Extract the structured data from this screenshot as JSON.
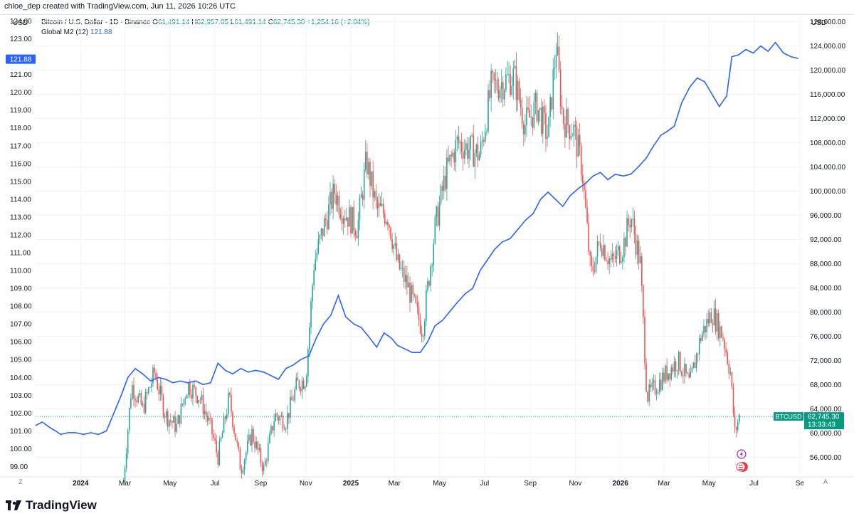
{
  "header": {
    "created_by": "chloe_dep created with TradingView.com, Jun 11, 2026 10:26 UTC"
  },
  "axes_units": {
    "left": "USD",
    "right": "USD"
  },
  "legend": {
    "symbol": "Bitcoin / U.S. Dollar · 1D · Binance",
    "open_label": "O",
    "open": "61,491.14",
    "high_label": "H",
    "high": "62,957.05",
    "low_label": "L",
    "low": "61,491.14",
    "close_label": "C",
    "close": "62,745.30",
    "change": "+1,254.16 (+2.04%)",
    "m2_name": "Global M2 (12)",
    "m2_value": "121.88"
  },
  "colors": {
    "up": "#26a69a",
    "down": "#ef5350",
    "m2_line": "#2962ff",
    "price_tag": "#089981",
    "m2_tag": "#2962ff"
  },
  "chart_data": {
    "type": "line",
    "left_axis": {
      "ticks": [
        "124.00",
        "123.00",
        "121.00",
        "120.00",
        "119.00",
        "118.00",
        "117.00",
        "116.00",
        "115.00",
        "114.00",
        "113.00",
        "112.00",
        "111.00",
        "110.00",
        "109.00",
        "108.00",
        "107.00",
        "106.00",
        "105.00",
        "104.00",
        "103.00",
        "102.00",
        "101.00",
        "100.00",
        "99.00"
      ],
      "range": [
        98.5,
        124.3
      ]
    },
    "right_axis": {
      "ticks": [
        "128,000.00",
        "124,000.00",
        "120,000.00",
        "116,000.00",
        "112,000.00",
        "108,000.00",
        "104,000.00",
        "100,000.00",
        "96,000.00",
        "92,000.00",
        "88,000.00",
        "84,000.00",
        "80,000.00",
        "76,000.00",
        "72,000.00",
        "68,000.00",
        "64,000.00",
        "60,000.00",
        "56,000.00"
      ],
      "range": [
        53000,
        129000
      ]
    },
    "x_ticks": [
      "2024",
      "Mar",
      "May",
      "Jul",
      "Sep",
      "Nov",
      "2025",
      "Mar",
      "May",
      "Jul",
      "Sep",
      "Nov",
      "2026",
      "Mar",
      "May",
      "Jul",
      "Se"
    ],
    "x_range": [
      "2023-11-01",
      "2026-09-05"
    ],
    "series": [
      {
        "name": "Global M2 (12)",
        "axis": "left",
        "points": [
          [
            "2023-11-01",
            101.3
          ],
          [
            "2023-11-10",
            101.5
          ],
          [
            "2023-11-20",
            101.2
          ],
          [
            "2023-11-28",
            101.0
          ],
          [
            "2023-12-05",
            100.8
          ],
          [
            "2023-12-15",
            100.9
          ],
          [
            "2023-12-25",
            100.9
          ],
          [
            "2024-01-05",
            100.8
          ],
          [
            "2024-01-15",
            100.9
          ],
          [
            "2024-01-25",
            100.8
          ],
          [
            "2024-02-05",
            101.0
          ],
          [
            "2024-02-15",
            102.0
          ],
          [
            "2024-02-25",
            103.0
          ],
          [
            "2024-03-05",
            104.0
          ],
          [
            "2024-03-15",
            104.5
          ],
          [
            "2024-03-25",
            104.2
          ],
          [
            "2024-04-05",
            103.8
          ],
          [
            "2024-04-15",
            104.0
          ],
          [
            "2024-04-25",
            103.9
          ],
          [
            "2024-05-05",
            103.7
          ],
          [
            "2024-05-15",
            103.8
          ],
          [
            "2024-05-25",
            103.7
          ],
          [
            "2024-06-05",
            103.8
          ],
          [
            "2024-06-15",
            103.6
          ],
          [
            "2024-06-25",
            103.7
          ],
          [
            "2024-07-05",
            104.8
          ],
          [
            "2024-07-15",
            104.4
          ],
          [
            "2024-07-25",
            104.2
          ],
          [
            "2024-08-05",
            104.5
          ],
          [
            "2024-08-15",
            104.3
          ],
          [
            "2024-08-25",
            104.4
          ],
          [
            "2024-09-05",
            104.3
          ],
          [
            "2024-09-15",
            104.1
          ],
          [
            "2024-09-25",
            103.9
          ],
          [
            "2024-10-05",
            104.5
          ],
          [
            "2024-10-15",
            104.7
          ],
          [
            "2024-10-25",
            105.0
          ],
          [
            "2024-11-05",
            105.2
          ],
          [
            "2024-11-15",
            106.2
          ],
          [
            "2024-11-25",
            107.0
          ],
          [
            "2024-12-05",
            107.5
          ],
          [
            "2024-12-15",
            108.6
          ],
          [
            "2024-12-25",
            107.4
          ],
          [
            "2025-01-05",
            107.0
          ],
          [
            "2025-01-15",
            106.8
          ],
          [
            "2025-01-25",
            106.3
          ],
          [
            "2025-02-05",
            105.7
          ],
          [
            "2025-02-15",
            106.5
          ],
          [
            "2025-02-25",
            106.2
          ],
          [
            "2025-03-05",
            105.8
          ],
          [
            "2025-03-15",
            105.6
          ],
          [
            "2025-03-25",
            105.4
          ],
          [
            "2025-04-05",
            105.4
          ],
          [
            "2025-04-15",
            106.0
          ],
          [
            "2025-04-25",
            106.9
          ],
          [
            "2025-05-05",
            107.2
          ],
          [
            "2025-05-15",
            107.7
          ],
          [
            "2025-05-25",
            108.2
          ],
          [
            "2025-06-05",
            108.7
          ],
          [
            "2025-06-15",
            109.0
          ],
          [
            "2025-06-25",
            110.0
          ],
          [
            "2025-07-05",
            110.6
          ],
          [
            "2025-07-15",
            111.2
          ],
          [
            "2025-07-25",
            111.6
          ],
          [
            "2025-08-05",
            111.8
          ],
          [
            "2025-08-15",
            112.3
          ],
          [
            "2025-08-25",
            112.8
          ],
          [
            "2025-09-05",
            113.2
          ],
          [
            "2025-09-15",
            114.0
          ],
          [
            "2025-09-25",
            114.4
          ],
          [
            "2025-10-05",
            114.0
          ],
          [
            "2025-10-15",
            113.6
          ],
          [
            "2025-10-25",
            114.2
          ],
          [
            "2025-11-05",
            114.6
          ],
          [
            "2025-11-15",
            114.9
          ],
          [
            "2025-11-25",
            115.3
          ],
          [
            "2025-12-05",
            115.5
          ],
          [
            "2025-12-15",
            115.1
          ],
          [
            "2025-12-25",
            115.4
          ],
          [
            "2026-01-05",
            115.3
          ],
          [
            "2026-01-15",
            115.4
          ],
          [
            "2026-01-25",
            115.8
          ],
          [
            "2026-02-05",
            116.3
          ],
          [
            "2026-02-15",
            117.0
          ],
          [
            "2026-02-25",
            117.6
          ],
          [
            "2026-03-05",
            117.8
          ],
          [
            "2026-03-15",
            118.1
          ],
          [
            "2026-03-25",
            119.4
          ],
          [
            "2026-04-05",
            120.3
          ],
          [
            "2026-04-15",
            120.8
          ],
          [
            "2026-04-25",
            120.6
          ],
          [
            "2026-05-05",
            119.9
          ],
          [
            "2026-05-15",
            119.2
          ],
          [
            "2026-05-25",
            119.8
          ],
          [
            "2026-06-01",
            122.0
          ],
          [
            "2026-06-10",
            122.1
          ],
          [
            "2026-06-20",
            122.4
          ],
          [
            "2026-06-30",
            122.2
          ],
          [
            "2026-07-10",
            122.6
          ],
          [
            "2026-07-20",
            122.3
          ],
          [
            "2026-07-30",
            122.8
          ],
          [
            "2026-08-10",
            122.2
          ],
          [
            "2026-08-20",
            122.0
          ],
          [
            "2026-08-30",
            121.9
          ]
        ]
      },
      {
        "name": "BTCUSD",
        "axis": "right",
        "type": "candlestick",
        "points": [
          [
            "2024-02-28",
            52000
          ],
          [
            "2024-03-10",
            68000
          ],
          [
            "2024-03-25",
            64000
          ],
          [
            "2024-04-10",
            70000
          ],
          [
            "2024-04-25",
            63000
          ],
          [
            "2024-05-10",
            61000
          ],
          [
            "2024-05-25",
            68000
          ],
          [
            "2024-06-10",
            66000
          ],
          [
            "2024-06-25",
            61000
          ],
          [
            "2024-07-05",
            56000
          ],
          [
            "2024-07-20",
            66000
          ],
          [
            "2024-08-05",
            54000
          ],
          [
            "2024-08-20",
            60000
          ],
          [
            "2024-09-05",
            54000
          ],
          [
            "2024-09-20",
            63000
          ],
          [
            "2024-10-05",
            62000
          ],
          [
            "2024-10-20",
            68000
          ],
          [
            "2024-11-01",
            69000
          ],
          [
            "2024-11-12",
            88000
          ],
          [
            "2024-11-25",
            94000
          ],
          [
            "2024-12-10",
            100000
          ],
          [
            "2024-12-20",
            97000
          ],
          [
            "2025-01-10",
            94000
          ],
          [
            "2025-01-22",
            105000
          ],
          [
            "2025-02-05",
            97000
          ],
          [
            "2025-02-20",
            96000
          ],
          [
            "2025-03-05",
            88000
          ],
          [
            "2025-03-20",
            84000
          ],
          [
            "2025-04-08",
            77000
          ],
          [
            "2025-04-25",
            94000
          ],
          [
            "2025-05-10",
            103000
          ],
          [
            "2025-05-25",
            108000
          ],
          [
            "2025-06-10",
            107000
          ],
          [
            "2025-06-25",
            106000
          ],
          [
            "2025-07-10",
            117000
          ],
          [
            "2025-07-25",
            118000
          ],
          [
            "2025-08-10",
            119000
          ],
          [
            "2025-08-25",
            111000
          ],
          [
            "2025-09-10",
            114000
          ],
          [
            "2025-09-25",
            109000
          ],
          [
            "2025-10-06",
            124000
          ],
          [
            "2025-10-15",
            112000
          ],
          [
            "2025-10-30",
            110000
          ],
          [
            "2025-11-10",
            104000
          ],
          [
            "2025-11-22",
            86000
          ],
          [
            "2025-12-05",
            92000
          ],
          [
            "2025-12-20",
            88000
          ],
          [
            "2026-01-05",
            91000
          ],
          [
            "2026-01-15",
            96000
          ],
          [
            "2026-01-28",
            88000
          ],
          [
            "2026-02-06",
            66000
          ],
          [
            "2026-02-20",
            68000
          ],
          [
            "2026-03-05",
            70000
          ],
          [
            "2026-03-20",
            72000
          ],
          [
            "2026-04-05",
            68000
          ],
          [
            "2026-04-20",
            76000
          ],
          [
            "2026-05-05",
            80000
          ],
          [
            "2026-05-20",
            76000
          ],
          [
            "2026-05-30",
            70000
          ],
          [
            "2026-06-05",
            60000
          ],
          [
            "2026-06-11",
            62745
          ]
        ]
      }
    ],
    "price_tag": {
      "symbol": "BTCUSD",
      "value": "62,745.30",
      "countdown": "13:33:43"
    },
    "m2_tag": "121.88"
  },
  "footer": {
    "brand": "TradingView",
    "left_button": "Z",
    "right_button": "A"
  }
}
